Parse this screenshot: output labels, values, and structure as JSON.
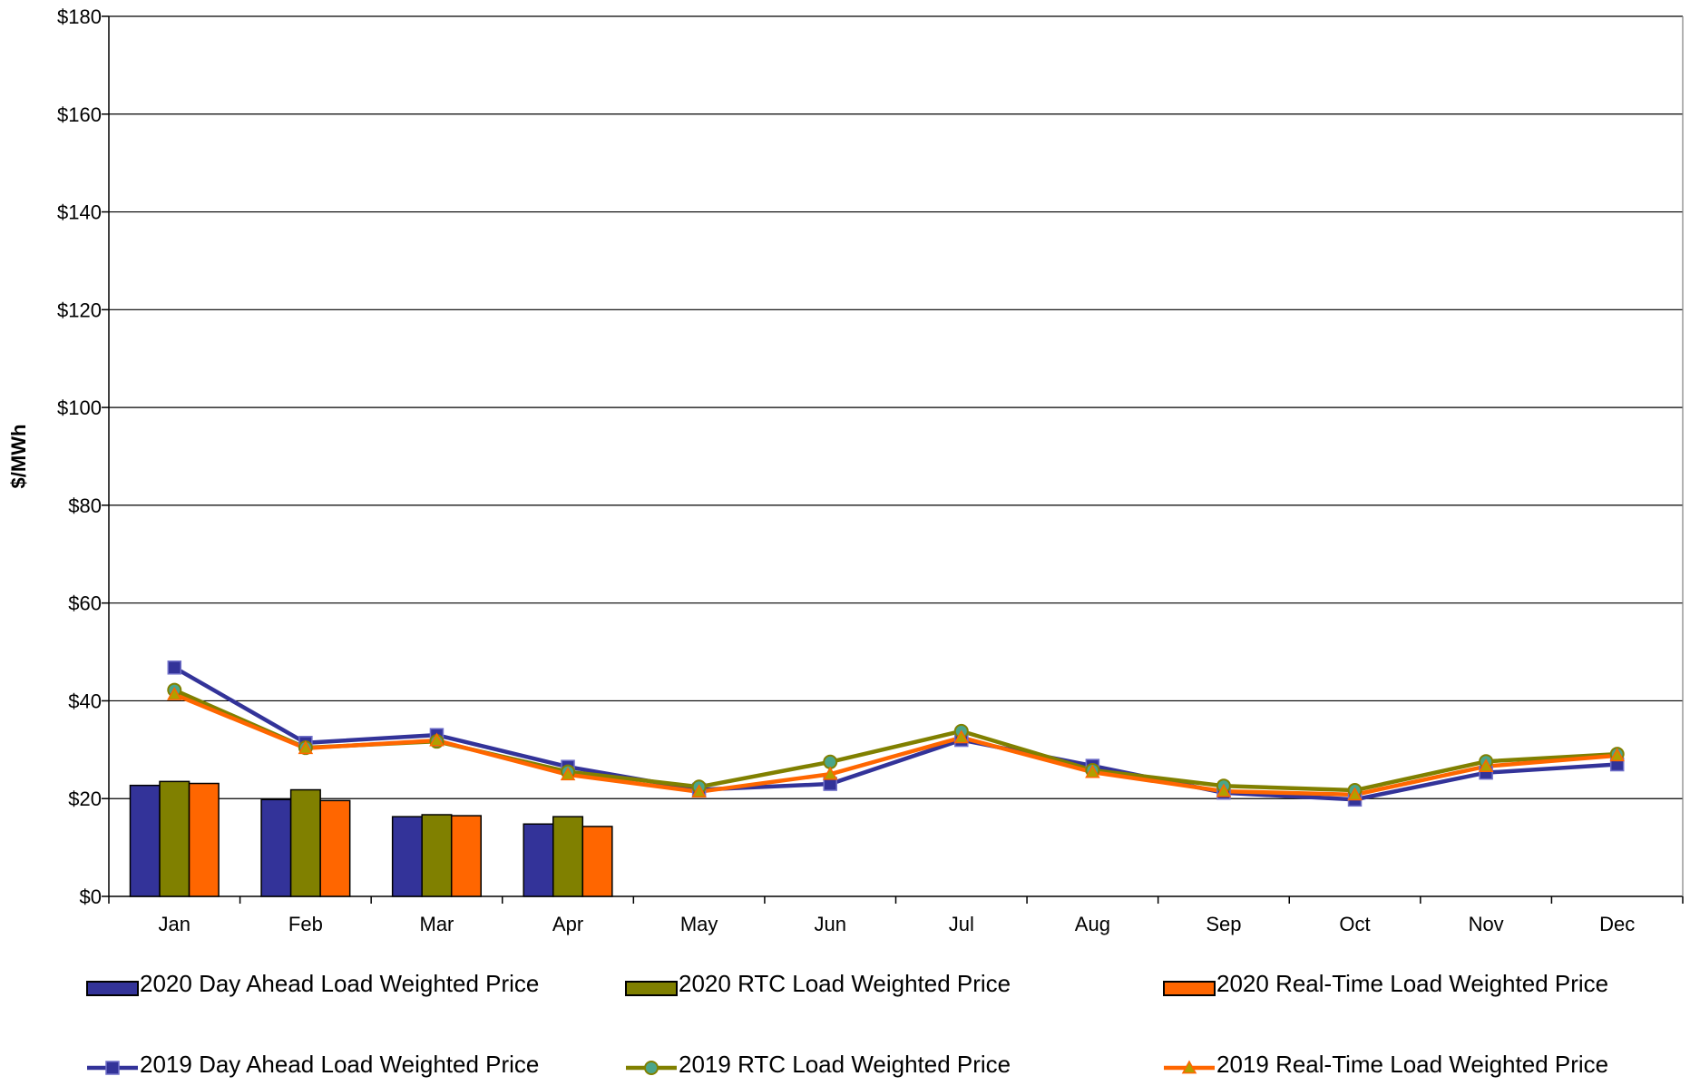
{
  "chart_data": {
    "type": "bar",
    "title": "",
    "xlabel": "",
    "ylabel": "$/MWh",
    "ylim": [
      0,
      180
    ],
    "yticks": [
      0,
      20,
      40,
      60,
      80,
      100,
      120,
      140,
      160,
      180
    ],
    "ytick_labels": [
      "$0",
      "$20",
      "$40",
      "$60",
      "$80",
      "$100",
      "$120",
      "$140",
      "$160",
      "$180"
    ],
    "categories": [
      "Jan",
      "Feb",
      "Mar",
      "Apr",
      "May",
      "Jun",
      "Jul",
      "Aug",
      "Sep",
      "Oct",
      "Nov",
      "Dec"
    ],
    "grid": true,
    "legend_position": "bottom",
    "bar_series": [
      {
        "name": "2020 Day Ahead Load Weighted Price",
        "color": "#333399",
        "values": [
          22.7,
          19.8,
          16.3,
          14.8,
          null,
          null,
          null,
          null,
          null,
          null,
          null,
          null
        ]
      },
      {
        "name": "2020 RTC Load Weighted Price",
        "color": "#808000",
        "values": [
          23.5,
          21.8,
          16.7,
          16.3,
          null,
          null,
          null,
          null,
          null,
          null,
          null,
          null
        ]
      },
      {
        "name": "2020 Real-Time Load Weighted Price",
        "color": "#FF6600",
        "values": [
          23.1,
          19.6,
          16.5,
          14.3,
          null,
          null,
          null,
          null,
          null,
          null,
          null,
          null
        ]
      }
    ],
    "line_series": [
      {
        "name": "2019 Day Ahead Load Weighted Price",
        "color": "#333399",
        "marker": "square",
        "values": [
          46.8,
          31.4,
          33.0,
          26.5,
          21.8,
          23.0,
          32.0,
          26.7,
          21.2,
          19.8,
          25.3,
          27.0
        ]
      },
      {
        "name": "2019 RTC Load Weighted Price",
        "color": "#808000",
        "marker": "circle",
        "values": [
          42.2,
          30.4,
          31.7,
          25.5,
          22.4,
          27.5,
          33.8,
          25.8,
          22.6,
          21.7,
          27.6,
          29.1
        ]
      },
      {
        "name": "2019 Real-Time Load Weighted Price",
        "color": "#FF6600",
        "marker": "triangle",
        "values": [
          41.3,
          30.3,
          31.9,
          24.9,
          21.4,
          25.0,
          32.5,
          25.4,
          21.5,
          20.8,
          26.6,
          28.8
        ]
      }
    ]
  }
}
